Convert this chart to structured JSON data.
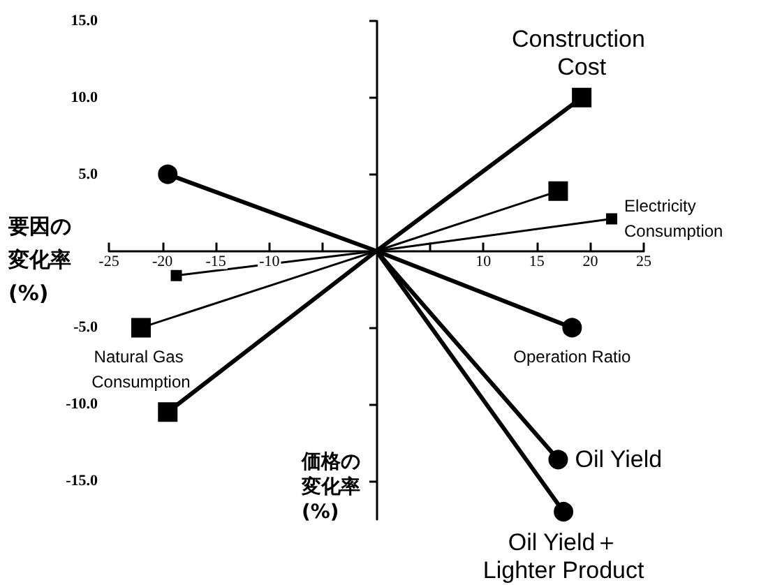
{
  "chart_data": {
    "type": "line",
    "xlabel": "要因の変化率(%)",
    "ylabel": "価格の変化率(%)",
    "xlim": [
      -25,
      25
    ],
    "xticks": [
      -25,
      -20,
      -15,
      -10,
      {
        "value": -5,
        "label": null
      },
      {
        "value": 5,
        "label": null
      },
      10,
      15,
      20,
      25
    ],
    "ylim": [
      -17.5,
      15
    ],
    "yticks": [
      {
        "value": -15,
        "label": "-15.0"
      },
      {
        "value": -10,
        "label": "-10.0"
      },
      {
        "value": -5,
        "label": "-5.0"
      },
      {
        "value": 5,
        "label": "5.0"
      },
      {
        "value": 10,
        "label": "10.0"
      },
      {
        "value": 15,
        "label": "15.0"
      }
    ],
    "grid": false,
    "series": [
      {
        "name": "Construction Cost",
        "color": "#000000",
        "marker": "square",
        "x": [
          -19.5,
          0,
          19.2
        ],
        "values": [
          -10.5,
          0,
          10.0
        ]
      },
      {
        "name": "Electricity Consumption",
        "color": "#000000",
        "marker": "square",
        "x": [
          -18.7,
          0,
          22
        ],
        "values": [
          -1.6,
          0,
          2.1
        ]
      },
      {
        "name": "Natural Gas Consumption",
        "color": "#000000",
        "marker": "square",
        "x": [
          17,
          0,
          -22
        ],
        "values": [
          3.9,
          0,
          -5.0
        ]
      },
      {
        "name": "Operation Ratio",
        "color": "#000000",
        "marker": "circle",
        "x": [
          -19.5,
          0,
          18.3
        ],
        "values": [
          5.0,
          0,
          -5.0
        ]
      },
      {
        "name": "Oil Yield",
        "color": "#000000",
        "marker": "circle",
        "x": [
          0,
          17
        ],
        "values": [
          0,
          -13.6
        ]
      },
      {
        "name": "Oil Yield＋Lighter Product",
        "color": "#000000",
        "marker": "circle",
        "x": [
          0,
          17.5
        ],
        "values": [
          0,
          -17.0
        ]
      }
    ]
  }
}
